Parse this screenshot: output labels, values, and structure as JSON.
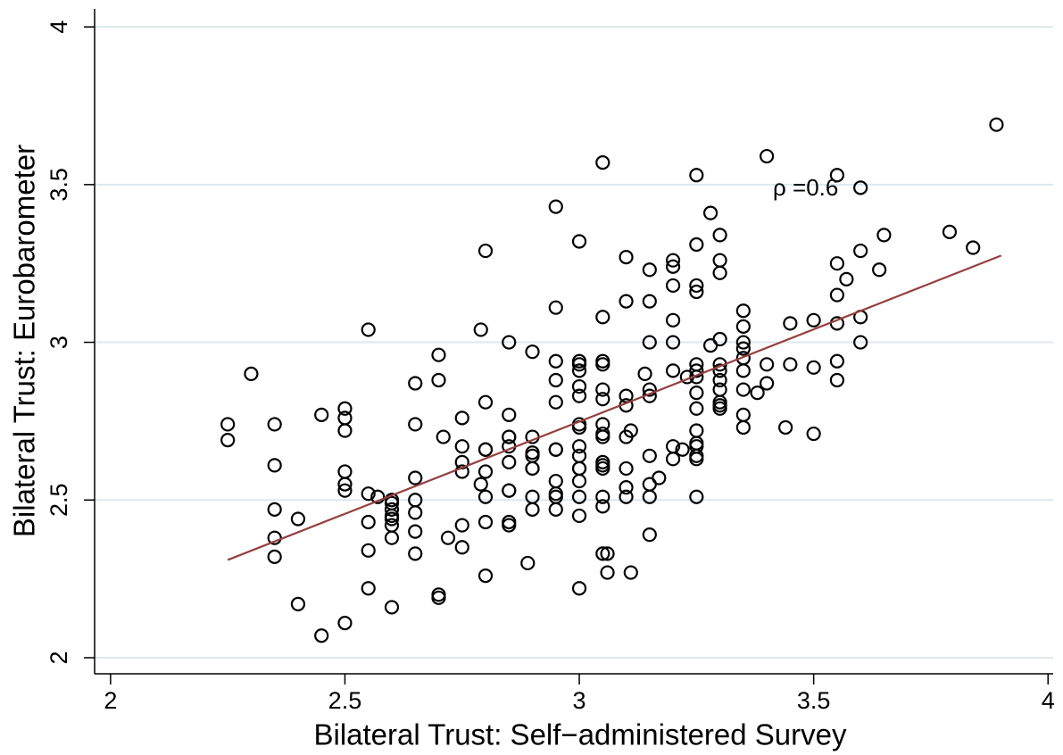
{
  "chart_data": {
    "type": "scatter",
    "x_label": "Bilateral Trust: Self−administered Survey",
    "y_label": "Bilateral Trust: Eurobarometer",
    "annotation": "ρ =0.6",
    "annotation_color": "#ff0000",
    "xlim": [
      1.966,
      4.011
    ],
    "ylim": [
      1.949,
      4.057
    ],
    "xticks": [
      2,
      2.5,
      3,
      3.5,
      4
    ],
    "yticks": [
      2,
      2.5,
      3,
      3.5,
      4
    ],
    "grid": true,
    "grid_color": "#dfe8ec",
    "fit_line": {
      "color": "#94403f",
      "x": [
        2.25,
        3.9
      ],
      "y": [
        2.31,
        3.275
      ]
    },
    "x": [
      2.25,
      2.25,
      2.3,
      2.35,
      2.35,
      2.35,
      2.35,
      2.35,
      2.4,
      2.4,
      2.45,
      2.45,
      2.5,
      2.5,
      2.5,
      2.5,
      2.5,
      2.5,
      2.5,
      2.55,
      2.55,
      2.55,
      2.55,
      2.55,
      2.57,
      2.6,
      2.6,
      2.6,
      2.6,
      2.6,
      2.6,
      2.6,
      2.6,
      2.65,
      2.65,
      2.65,
      2.65,
      2.65,
      2.65,
      2.65,
      2.7,
      2.7,
      2.7,
      2.7,
      2.71,
      2.72,
      2.75,
      2.75,
      2.75,
      2.75,
      2.75,
      2.75,
      2.79,
      2.79,
      2.8,
      2.8,
      2.8,
      2.8,
      2.8,
      2.8,
      2.8,
      2.8,
      2.85,
      2.85,
      2.85,
      2.85,
      2.85,
      2.85,
      2.85,
      2.85,
      2.85,
      2.85,
      2.9,
      2.9,
      2.9,
      2.9,
      2.9,
      2.9,
      2.9,
      2.9,
      2.89,
      2.95,
      2.95,
      2.95,
      2.95,
      2.95,
      2.95,
      2.95,
      2.95,
      2.95,
      2.95,
      2.95,
      3.0,
      3.0,
      3.0,
      3.0,
      3.0,
      3.0,
      3.0,
      3.0,
      3.0,
      3.0,
      3.0,
      3.0,
      3.0,
      3.0,
      3.0,
      3.0,
      3.05,
      3.05,
      3.05,
      3.05,
      3.05,
      3.05,
      3.05,
      3.05,
      3.05,
      3.05,
      3.05,
      3.05,
      3.05,
      3.05,
      3.05,
      3.06,
      3.06,
      3.1,
      3.1,
      3.1,
      3.1,
      3.1,
      3.1,
      3.1,
      3.1,
      3.11,
      3.11,
      3.14,
      3.15,
      3.15,
      3.15,
      3.15,
      3.15,
      3.15,
      3.15,
      3.15,
      3.15,
      3.17,
      3.2,
      3.2,
      3.2,
      3.2,
      3.2,
      3.2,
      3.2,
      3.2,
      3.22,
      3.23,
      3.25,
      3.25,
      3.25,
      3.25,
      3.25,
      3.25,
      3.25,
      3.25,
      3.25,
      3.25,
      3.25,
      3.25,
      3.25,
      3.25,
      3.25,
      3.28,
      3.28,
      3.3,
      3.3,
      3.3,
      3.3,
      3.3,
      3.3,
      3.3,
      3.3,
      3.3,
      3.3,
      3.3,
      3.35,
      3.35,
      3.35,
      3.35,
      3.35,
      3.35,
      3.35,
      3.35,
      3.35,
      3.38,
      3.4,
      3.4,
      3.4,
      3.44,
      3.45,
      3.45,
      3.5,
      3.5,
      3.5,
      3.55,
      3.55,
      3.55,
      3.55,
      3.55,
      3.55,
      3.57,
      3.6,
      3.6,
      3.6,
      3.6,
      3.64,
      3.65,
      3.79,
      3.84,
      3.89
    ],
    "series": [
      {
        "name": "Bilateral Trust: Eurobarometer",
        "color": "#000000",
        "values": [
          2.74,
          2.69,
          2.9,
          2.74,
          2.61,
          2.47,
          2.38,
          2.32,
          2.44,
          2.17,
          2.77,
          2.07,
          2.79,
          2.76,
          2.72,
          2.59,
          2.55,
          2.53,
          2.11,
          3.04,
          2.52,
          2.43,
          2.34,
          2.22,
          2.51,
          2.5,
          2.49,
          2.47,
          2.45,
          2.44,
          2.42,
          2.38,
          2.16,
          2.87,
          2.74,
          2.57,
          2.5,
          2.46,
          2.4,
          2.33,
          2.96,
          2.88,
          2.19,
          2.2,
          2.7,
          2.38,
          2.76,
          2.67,
          2.62,
          2.59,
          2.42,
          2.35,
          3.04,
          2.55,
          2.66,
          2.66,
          3.29,
          2.81,
          2.59,
          2.51,
          2.43,
          2.26,
          3.0,
          2.7,
          2.7,
          2.67,
          2.62,
          2.53,
          2.53,
          2.43,
          2.42,
          2.77,
          2.97,
          2.7,
          2.65,
          2.64,
          2.6,
          2.47,
          2.51,
          2.6,
          2.3,
          3.43,
          3.11,
          2.94,
          2.88,
          2.81,
          2.66,
          2.66,
          2.56,
          2.52,
          2.51,
          2.47,
          3.32,
          2.94,
          2.93,
          2.91,
          2.86,
          2.83,
          2.74,
          2.73,
          2.67,
          2.64,
          2.6,
          2.6,
          2.56,
          2.51,
          2.45,
          2.22,
          3.57,
          3.08,
          2.94,
          2.93,
          2.85,
          2.82,
          2.74,
          2.71,
          2.7,
          2.62,
          2.61,
          2.6,
          2.51,
          2.48,
          2.33,
          2.33,
          2.27,
          3.27,
          3.13,
          2.83,
          2.8,
          2.7,
          2.6,
          2.54,
          2.51,
          2.72,
          2.27,
          2.9,
          3.0,
          3.23,
          3.13,
          2.85,
          2.83,
          2.64,
          2.55,
          2.51,
          2.39,
          2.57,
          3.26,
          3.24,
          3.18,
          3.07,
          3.0,
          2.91,
          2.67,
          2.63,
          2.66,
          2.89,
          3.53,
          3.31,
          3.18,
          3.16,
          2.93,
          2.91,
          2.89,
          2.84,
          2.79,
          2.72,
          2.68,
          2.67,
          2.64,
          2.63,
          2.51,
          3.41,
          2.99,
          3.34,
          3.26,
          3.01,
          2.93,
          2.91,
          2.88,
          2.85,
          2.81,
          2.8,
          2.79,
          3.22,
          3.05,
          3.0,
          2.98,
          2.95,
          2.91,
          2.85,
          2.77,
          2.73,
          3.1,
          2.84,
          2.93,
          3.59,
          2.87,
          2.73,
          3.06,
          2.93,
          2.92,
          3.07,
          2.71,
          3.25,
          3.15,
          3.06,
          2.94,
          2.88,
          3.53,
          3.2,
          3.49,
          3.29,
          3.08,
          3.0,
          3.23,
          3.34,
          3.35,
          3.3,
          3.69
        ]
      }
    ]
  }
}
